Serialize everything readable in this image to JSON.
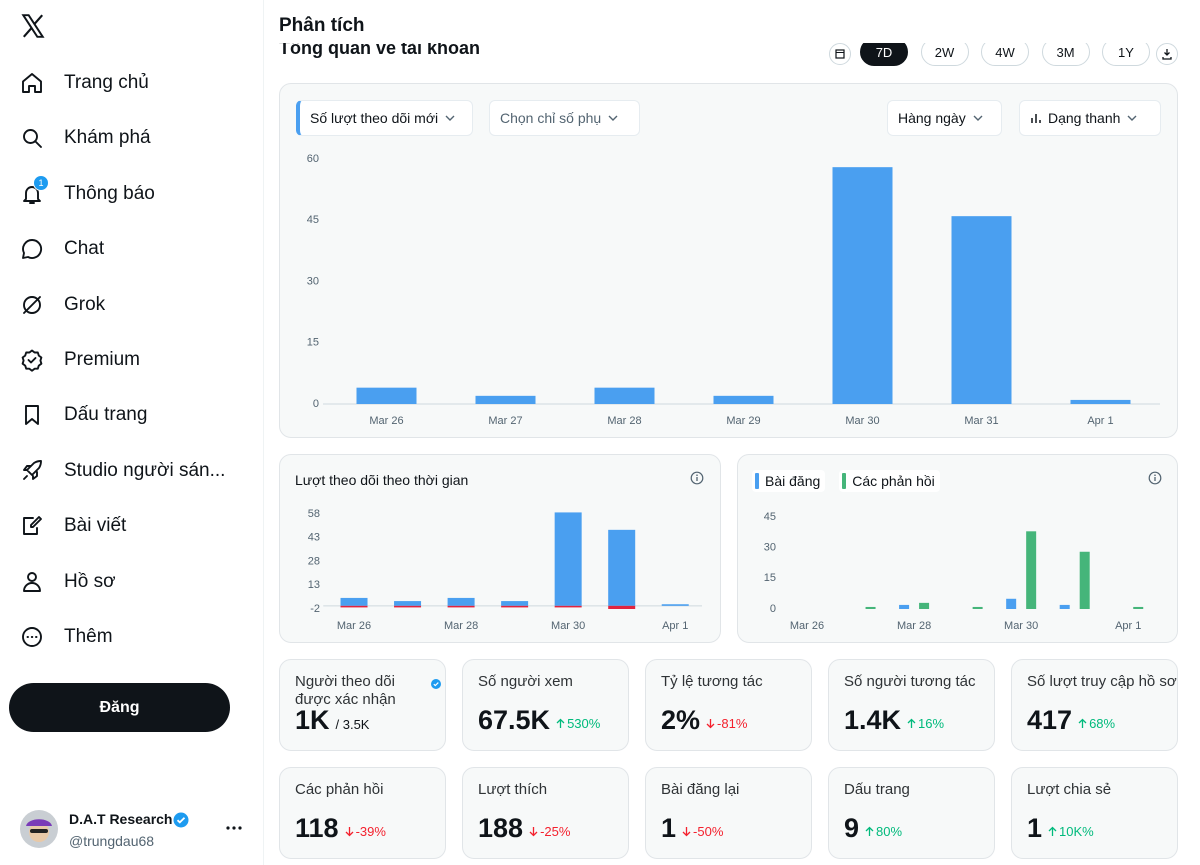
{
  "sidebar": {
    "nav": [
      "Trang chủ",
      "Khám phá",
      "Thông báo",
      "Chat",
      "Grok",
      "Premium",
      "Dấu trang",
      "Studio người sán...",
      "Bài viết",
      "Hồ sơ",
      "Thêm"
    ],
    "notification_badge": 1,
    "post_button": "Đăng",
    "account": {
      "name": "D.A.T Research",
      "handle": "@trungdau68"
    }
  },
  "main": {
    "title": "Phân tích",
    "section_title": "Tổng quan về tài khoản",
    "range_options": [
      "7D",
      "2W",
      "4W",
      "3M",
      "1Y"
    ],
    "selected_range": "7D",
    "controls": {
      "metric": "Số lượt theo dõi mới",
      "secondary_metric": "Chọn chỉ số phụ",
      "interval": "Hàng ngày",
      "chart_style": "Dạng thanh"
    }
  },
  "chart_data": [
    {
      "type": "bar",
      "categories": [
        "Mar 26",
        "Mar 27",
        "Mar 28",
        "Mar 29",
        "Mar 30",
        "Mar 31",
        "Apr 1"
      ],
      "values": [
        4,
        2,
        4,
        2,
        58,
        46,
        1
      ],
      "color": "#4a9ff0",
      "ylim": [
        0,
        60
      ],
      "yticks": [
        0,
        15,
        30,
        45,
        60
      ]
    },
    {
      "type": "bar",
      "title": "Lượt theo dõi theo thời gian",
      "categories": [
        "Mar 26",
        null,
        "Mar 28",
        null,
        "Mar 30",
        null,
        "Apr 1"
      ],
      "series": [
        {
          "color": "#4a9ff0",
          "values": [
            5,
            3,
            5,
            3,
            59,
            48,
            1
          ]
        },
        {
          "color": "#e0243f",
          "values": [
            -1,
            -1,
            -1,
            -1,
            -1,
            -2,
            0
          ]
        }
      ],
      "barmode": "relative",
      "ylim": [
        -2,
        58
      ],
      "yticks": [
        -2,
        13,
        28,
        43,
        58
      ]
    },
    {
      "type": "bar",
      "categories": [
        "Mar 26",
        null,
        "Mar 28",
        null,
        "Mar 30",
        null,
        "Apr 1"
      ],
      "series": [
        {
          "name": "Bài đăng",
          "color": "#4a9ff0",
          "values": [
            0,
            0,
            2,
            0,
            5,
            2,
            0
          ]
        },
        {
          "name": "Các phản hồi",
          "color": "#45b57a",
          "values": [
            0,
            1,
            3,
            1,
            38,
            28,
            1
          ]
        }
      ],
      "barmode": "group",
      "ylim": [
        0,
        45
      ],
      "yticks": [
        0,
        15,
        30,
        45
      ]
    }
  ],
  "metrics": [
    {
      "label": "Người theo dõi được xác nhận",
      "value": "1K",
      "secondary": "/ 3.5K",
      "verified": true
    },
    {
      "label": "Số người xem",
      "value": "67.5K",
      "change": "530%",
      "trend": "up"
    },
    {
      "label": "Tỷ lệ tương tác",
      "value": "2%",
      "change": "-81%",
      "trend": "down"
    },
    {
      "label": "Số người tương tác",
      "value": "1.4K",
      "change": "16%",
      "trend": "up"
    },
    {
      "label": "Số lượt truy cập hồ sơ",
      "value": "417",
      "change": "68%",
      "trend": "up"
    },
    {
      "label": "Các phản hồi",
      "value": "118",
      "change": "-39%",
      "trend": "down"
    },
    {
      "label": "Lượt thích",
      "value": "188",
      "change": "-25%",
      "trend": "down"
    },
    {
      "label": "Bài đăng lại",
      "value": "1",
      "change": "-50%",
      "trend": "down"
    },
    {
      "label": "Dấu trang",
      "value": "9",
      "change": "80%",
      "trend": "up"
    },
    {
      "label": "Lượt chia sẻ",
      "value": "1",
      "change": "10K%",
      "trend": "up"
    }
  ]
}
